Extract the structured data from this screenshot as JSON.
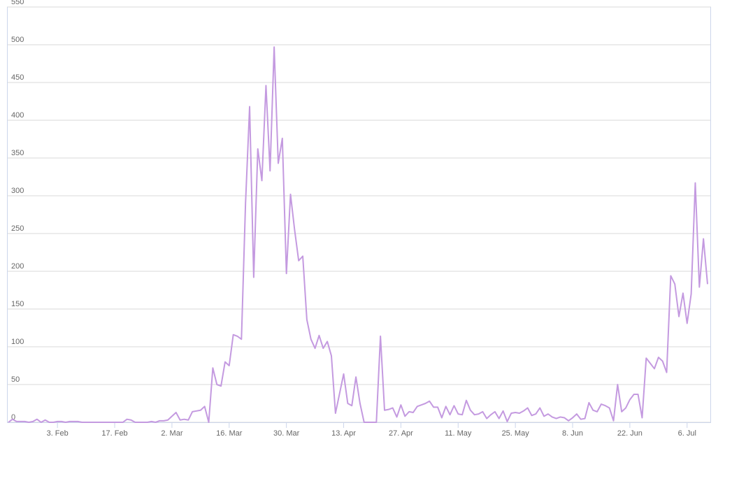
{
  "chart_data": {
    "type": "line",
    "categories": [
      null,
      null,
      null,
      null,
      null,
      null,
      null,
      null,
      null,
      null,
      null,
      null,
      "3. Feb",
      null,
      null,
      null,
      null,
      null,
      null,
      null,
      null,
      null,
      null,
      null,
      null,
      null,
      "17. Feb",
      null,
      null,
      null,
      null,
      null,
      null,
      null,
      null,
      null,
      null,
      null,
      null,
      null,
      "2. Mar",
      null,
      null,
      null,
      null,
      null,
      null,
      null,
      null,
      null,
      null,
      null,
      null,
      null,
      "16. Mar",
      null,
      null,
      null,
      null,
      null,
      null,
      null,
      null,
      null,
      null,
      null,
      null,
      null,
      "30. Mar",
      null,
      null,
      null,
      null,
      null,
      null,
      null,
      null,
      null,
      null,
      null,
      null,
      null,
      "13. Apr",
      null,
      null,
      null,
      null,
      null,
      null,
      null,
      null,
      null,
      null,
      null,
      null,
      null,
      "27. Apr",
      null,
      null,
      null,
      null,
      null,
      null,
      null,
      null,
      null,
      null,
      null,
      null,
      null,
      "11. May",
      null,
      null,
      null,
      null,
      null,
      null,
      null,
      null,
      null,
      null,
      null,
      null,
      null,
      "25. May",
      null,
      null,
      null,
      null,
      null,
      null,
      null,
      null,
      null,
      null,
      null,
      null,
      null,
      "8. Jun",
      null,
      null,
      null,
      null,
      null,
      null,
      null,
      null,
      null,
      null,
      null,
      null,
      null,
      "22. Jun",
      null,
      null,
      null,
      null,
      null,
      null,
      null,
      null,
      null,
      null,
      null,
      null,
      null,
      "6. Jul",
      null,
      null,
      null,
      null,
      null
    ],
    "series": [
      {
        "color": "#c49ae0",
        "values": [
          0,
          4,
          1,
          1,
          1,
          0,
          1,
          4,
          0,
          3,
          0,
          0,
          1,
          1,
          0,
          1,
          1,
          1,
          0,
          0,
          0,
          0,
          0,
          0,
          0,
          0,
          0,
          0,
          0,
          4,
          3,
          0,
          0,
          0,
          0,
          1,
          0,
          2,
          2,
          3,
          8,
          13,
          3,
          4,
          3,
          14,
          15,
          16,
          21,
          0,
          72,
          50,
          48,
          80,
          75,
          116,
          114,
          110,
          290,
          418,
          192,
          362,
          320,
          446,
          333,
          497,
          343,
          376,
          197,
          302,
          255,
          214,
          220,
          136,
          110,
          98,
          115,
          98,
          107,
          88,
          12,
          38,
          64,
          25,
          22,
          60,
          25,
          0,
          0,
          0,
          0,
          114,
          16,
          17,
          19,
          7,
          23,
          8,
          14,
          13,
          21,
          23,
          25,
          28,
          20,
          20,
          6,
          21,
          10,
          22,
          11,
          10,
          29,
          16,
          10,
          11,
          14,
          5,
          10,
          14,
          5,
          15,
          1,
          12,
          13,
          12,
          15,
          19,
          9,
          11,
          19,
          8,
          11,
          7,
          5,
          7,
          6,
          2,
          6,
          11,
          4,
          5,
          26,
          16,
          14,
          24,
          22,
          19,
          2,
          50,
          14,
          19,
          30,
          37,
          37,
          6,
          85,
          78,
          71,
          86,
          81,
          66,
          194,
          183,
          140,
          171,
          131,
          170,
          317,
          179,
          243,
          183
        ]
      }
    ],
    "ylim": [
      0,
      550
    ],
    "yticks": [
      0,
      50,
      100,
      150,
      200,
      250,
      300,
      350,
      400,
      450,
      500,
      550
    ],
    "grid": true
  }
}
